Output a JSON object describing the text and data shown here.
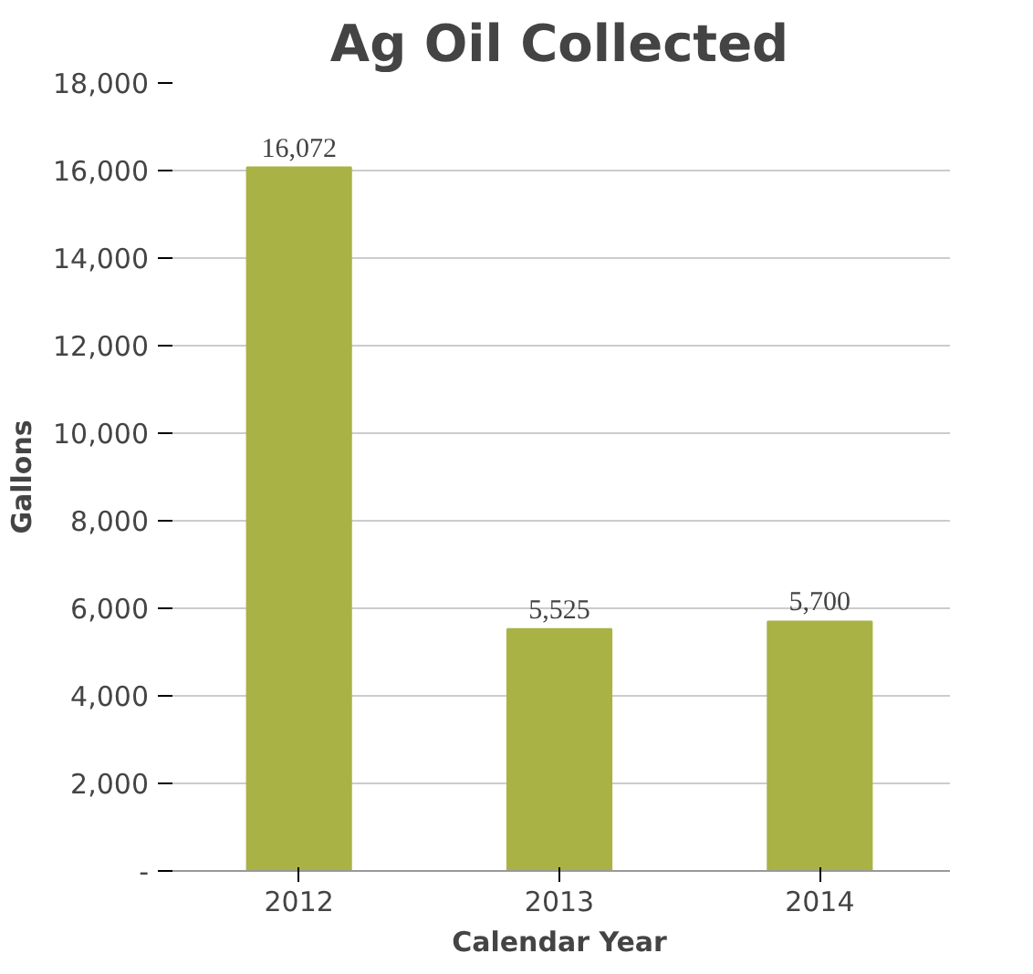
{
  "chart_data": {
    "type": "bar",
    "title": "Ag Oil Collected",
    "xlabel": "Calendar Year",
    "ylabel": "Gallons",
    "categories": [
      "2012",
      "2013",
      "2014"
    ],
    "values": [
      16072,
      5525,
      5700
    ],
    "value_labels": [
      "16,072",
      "5,525",
      "5,700"
    ],
    "color": "#a9b244",
    "ylim": [
      0,
      18000
    ],
    "yticks": [
      {
        "value": 0,
        "label": "-"
      },
      {
        "value": 2000,
        "label": "2,000"
      },
      {
        "value": 4000,
        "label": "4,000"
      },
      {
        "value": 6000,
        "label": "6,000"
      },
      {
        "value": 8000,
        "label": "8,000"
      },
      {
        "value": 10000,
        "label": "10,000"
      },
      {
        "value": 12000,
        "label": "12,000"
      },
      {
        "value": 14000,
        "label": "14,000"
      },
      {
        "value": 16000,
        "label": "16,000"
      },
      {
        "value": 18000,
        "label": "18,000"
      }
    ],
    "grid": "y"
  }
}
